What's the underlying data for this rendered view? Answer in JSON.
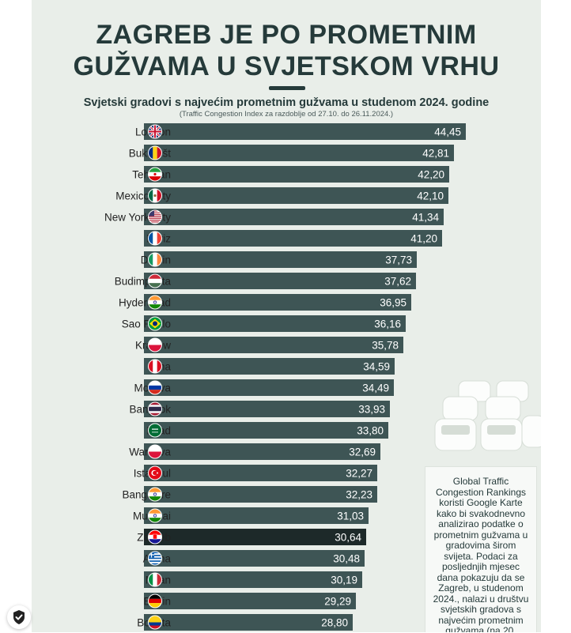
{
  "poster": {
    "title_line1": "ZAGREB JE PO PROMETNIM",
    "title_line2": "GUŽVAMA U SVJETSKOM VRHU",
    "subtitle": "Svjetski gradovi s najvećim prometnim gužvama u studenom 2024. godine",
    "note": "(Traffic Congestion Index za razdoblje od 27.10. do 26.11.2024.)",
    "info_text": "Global Traffic Congestion Rankings koristi Google Karte kako bi svakodnevno analizirao podatke o prometnim gužvama u gradovima širom svijeta. Podaci za posljednjih mjesec dana pokazuju da se Zagreb, u studenom 2024., nalazi u društvu svjetskih gradova s najvećim prometnim gužvama (na 20.",
    "badge_icon": "shield-check-icon"
  },
  "colors": {
    "bar": "#3e5555",
    "highlight": "#1d2929",
    "background": "#e9eee9",
    "title": "#253a3a"
  },
  "chart_data": {
    "type": "bar",
    "orientation": "horizontal",
    "title": "Svjetski gradovi s najvećim prometnim gužvama u studenom 2024. godine",
    "xlabel": "",
    "ylabel": "",
    "highlight": "Zagreb",
    "categories": [
      "London",
      "Bukurešt",
      "Teheran",
      "Mexico City",
      "New York City",
      "Pariz",
      "Dublin",
      "Budimpešta",
      "Hyderabad",
      "Sao Paulo",
      "Krakow",
      "Lima",
      "Moskva",
      "Bangkok",
      "Rijad",
      "Waršava",
      "Istanbul",
      "Bangalore",
      "Mumbai",
      "Zagreb",
      "Atena",
      "Milan",
      "Berlin",
      "Bogota"
    ],
    "values": [
      44.45,
      42.81,
      42.2,
      42.1,
      41.34,
      41.2,
      37.73,
      37.62,
      36.95,
      36.16,
      35.78,
      34.59,
      34.49,
      33.93,
      33.8,
      32.69,
      32.27,
      32.23,
      31.03,
      30.64,
      30.48,
      30.19,
      29.29,
      28.8
    ],
    "value_labels": [
      "44,45",
      "42,81",
      "42,20",
      "42,10",
      "41,34",
      "41,20",
      "37,73",
      "37,62",
      "36,95",
      "36,16",
      "35,78",
      "34,59",
      "34,49",
      "33,93",
      "33,80",
      "32,69",
      "32,27",
      "32,23",
      "31,03",
      "30,64",
      "30,48",
      "30,19",
      "29,29",
      "28,80"
    ],
    "flags": [
      "United Kingdom",
      "Romania",
      "Iran",
      "Mexico",
      "United States",
      "France",
      "Ireland",
      "Hungary",
      "India",
      "Brazil",
      "Poland",
      "Peru",
      "Russia",
      "Thailand",
      "Saudi Arabia",
      "Poland",
      "Turkey",
      "India",
      "India",
      "Croatia",
      "Greece",
      "Italy",
      "Germany",
      "Colombia"
    ],
    "xlim": [
      0,
      44.45
    ],
    "grid": false,
    "legend": "none"
  }
}
